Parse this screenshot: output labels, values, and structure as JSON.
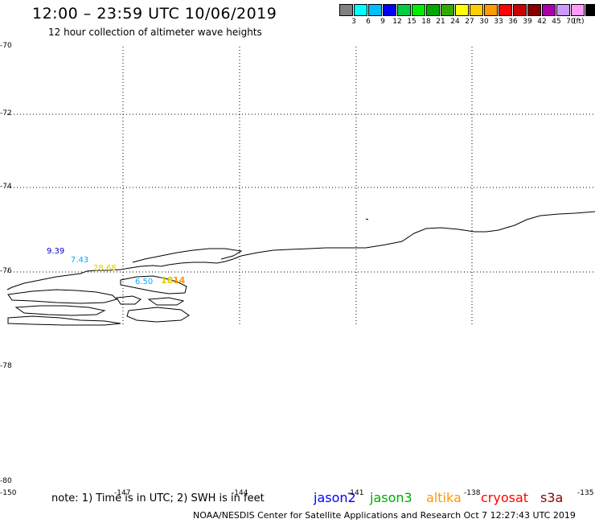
{
  "header": {
    "title": "12:00 – 23:59 UTC 10/06/2019",
    "subtitle": "12 hour collection of altimeter wave heights"
  },
  "colorbar": {
    "colors": [
      "#808080",
      "#00ffff",
      "#00bfff",
      "#0000ff",
      "#00cc44",
      "#00ee00",
      "#00aa00",
      "#33aa00",
      "#ffff00",
      "#ffcc00",
      "#ff9900",
      "#ff0000",
      "#cc0000",
      "#880000",
      "#aa00aa",
      "#cc99ff",
      "#ff99ff",
      "#000000"
    ],
    "labels": [
      "3",
      "6",
      "9",
      "12",
      "15",
      "18",
      "21",
      "24",
      "27",
      "30",
      "33",
      "36",
      "39",
      "42",
      "45",
      "70"
    ],
    "unit": "(ft)"
  },
  "axes": {
    "lat_labels": [
      "-70",
      "-72",
      "-74",
      "-76",
      "-78",
      "-80"
    ],
    "lon_labels": [
      "-150",
      "-147",
      "-144",
      "-141",
      "-138",
      "-135"
    ]
  },
  "observations": [
    {
      "label": "9.39",
      "color": "#0000cc"
    },
    {
      "label": "7.43",
      "color": "#00aaff"
    },
    {
      "label": "28.68",
      "color": "#ddcc00"
    },
    {
      "label": "6.50",
      "color": "#00aaff"
    },
    {
      "label": "18",
      "color": "#ddcc00"
    },
    {
      "label": "14",
      "color": "#ff9900"
    }
  ],
  "footer": {
    "note": "note: 1) Time is in UTC; 2) SWH is in feet",
    "satellites": [
      {
        "name": "jason2",
        "color": "#0000ff"
      },
      {
        "name": "jason3",
        "color": "#00aa00"
      },
      {
        "name": "altika",
        "color": "#ff9900"
      },
      {
        "name": "cryosat",
        "color": "#ff0000"
      },
      {
        "name": "s3a",
        "color": "#880000"
      }
    ],
    "credit": "NOAA/NESDIS Center for Satellite Applications and Research    Oct  7 12:27:43 UTC 2019"
  }
}
